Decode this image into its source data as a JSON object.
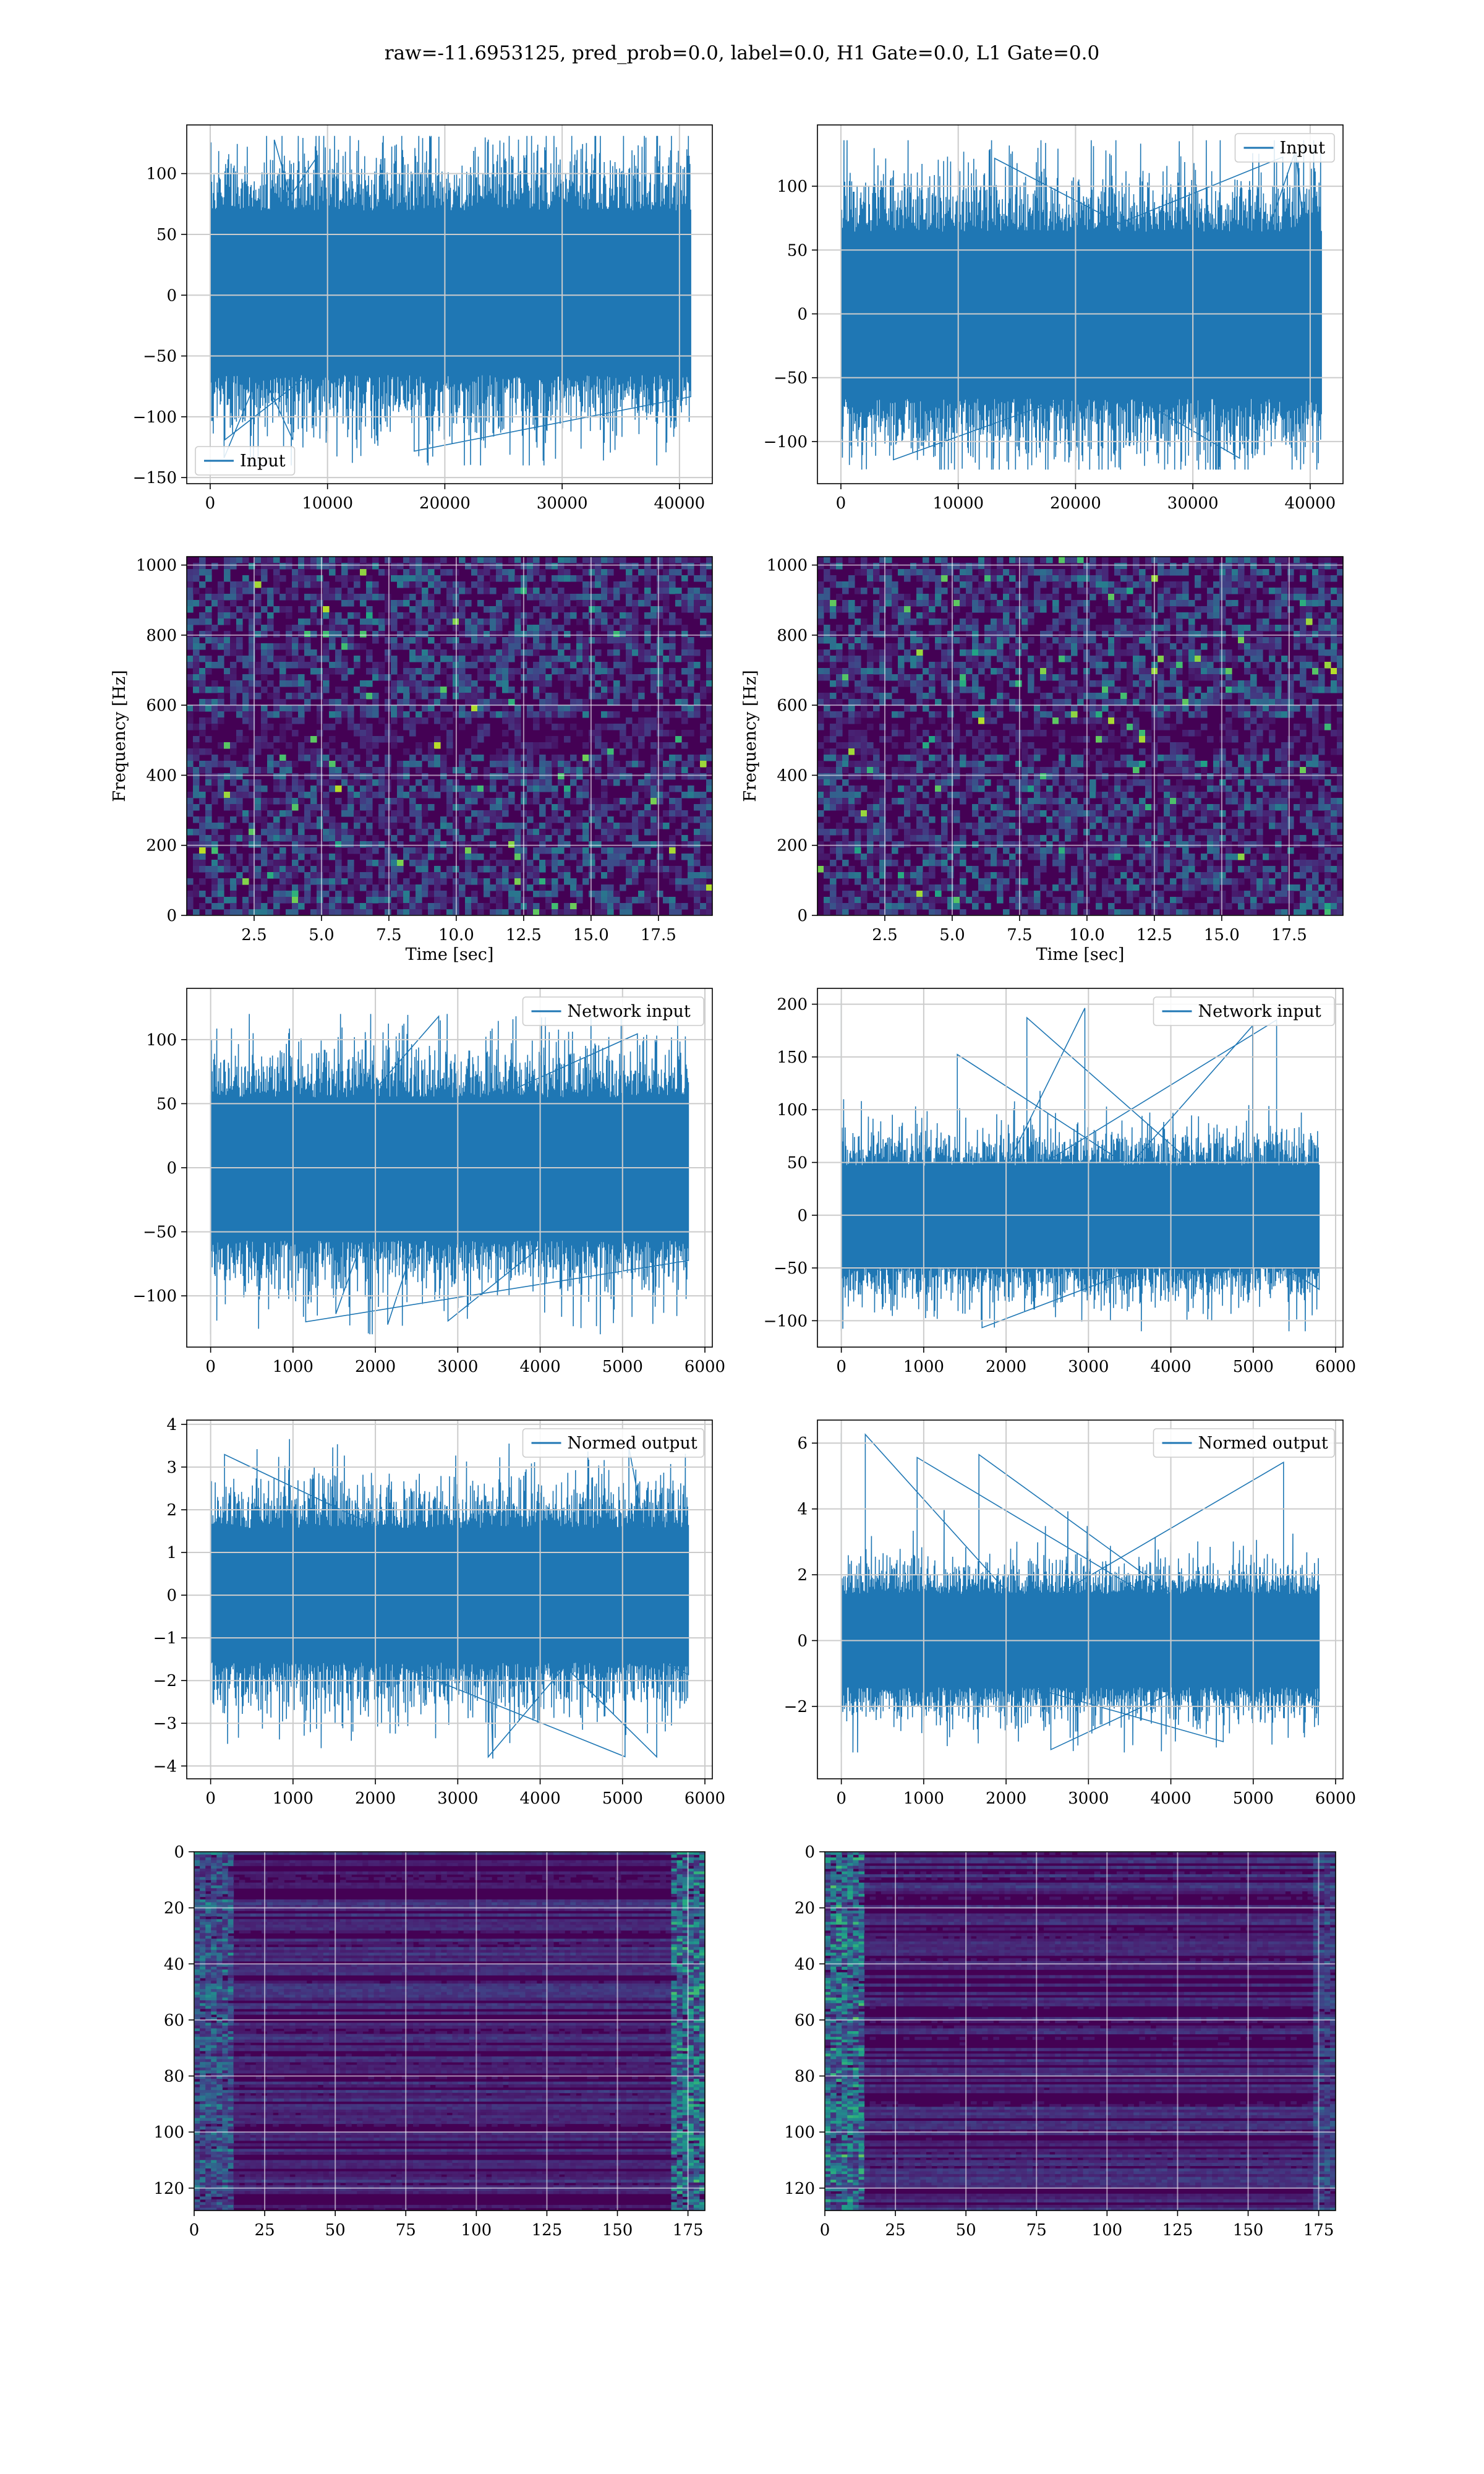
{
  "figure": {
    "title": "raw=-11.6953125, pred_prob=0.0, label=0.0, H1 Gate=0.0, L1 Gate=0.0"
  },
  "colors": {
    "series": "#1f77b4",
    "heatmap_low": "#440154",
    "heatmap_mid": "#21918c",
    "heatmap_high": "#fde725",
    "grid": "#cccccc"
  },
  "chart_data": [
    {
      "id": "h1-input",
      "type": "line",
      "legend": "Input",
      "legend_loc": "lower-left",
      "xlim": [
        -2000,
        42800
      ],
      "ylim": [
        -155,
        140
      ],
      "xticks": [
        0,
        10000,
        20000,
        30000,
        40000
      ],
      "yticks": [
        -150,
        -100,
        -50,
        0,
        50,
        100
      ],
      "grid": true,
      "envelope": {
        "n_samples": 40960,
        "upper_typical": 88,
        "lower_typical": -84,
        "upper_peak": 131,
        "lower_peak": -140
      }
    },
    {
      "id": "l1-input",
      "type": "line",
      "legend": "Input",
      "legend_loc": "upper-right",
      "xlim": [
        -2000,
        42800
      ],
      "ylim": [
        -133,
        148
      ],
      "xticks": [
        0,
        10000,
        20000,
        30000,
        40000
      ],
      "yticks": [
        -100,
        -50,
        0,
        50,
        100
      ],
      "grid": true,
      "envelope": {
        "n_samples": 40960,
        "upper_typical": 82,
        "lower_typical": -84,
        "upper_peak": 136,
        "lower_peak": -122
      }
    },
    {
      "id": "h1-spectrogram",
      "type": "heatmap",
      "xlabel": "Time [sec]",
      "ylabel": "Frequency [Hz]",
      "xlim": [
        0,
        19.5
      ],
      "ylim": [
        0,
        1024
      ],
      "xticks": [
        2.5,
        5.0,
        7.5,
        10.0,
        12.5,
        15.0,
        17.5
      ],
      "yticks": [
        0,
        200,
        400,
        600,
        800,
        1000
      ],
      "grid": true,
      "colormap": "viridis"
    },
    {
      "id": "l1-spectrogram",
      "type": "heatmap",
      "xlabel": "Time [sec]",
      "ylabel": "Frequency [Hz]",
      "xlim": [
        0,
        19.5
      ],
      "ylim": [
        0,
        1024
      ],
      "xticks": [
        2.5,
        5.0,
        7.5,
        10.0,
        12.5,
        15.0,
        17.5
      ],
      "yticks": [
        0,
        200,
        400,
        600,
        800,
        1000
      ],
      "grid": true,
      "colormap": "viridis"
    },
    {
      "id": "h1-network-input",
      "type": "line",
      "legend": "Network input",
      "legend_loc": "upper-right",
      "xlim": [
        -290,
        6090
      ],
      "ylim": [
        -140,
        140
      ],
      "xticks": [
        0,
        1000,
        2000,
        3000,
        4000,
        5000,
        6000
      ],
      "yticks": [
        -100,
        -50,
        0,
        50,
        100
      ],
      "grid": true,
      "envelope": {
        "n_samples": 5800,
        "upper_typical": 70,
        "lower_typical": -72,
        "upper_peak": 120,
        "lower_peak": -130
      }
    },
    {
      "id": "l1-network-input",
      "type": "line",
      "legend": "Network input",
      "legend_loc": "upper-right",
      "xlim": [
        -290,
        6090
      ],
      "ylim": [
        -125,
        215
      ],
      "xticks": [
        0,
        1000,
        2000,
        3000,
        4000,
        5000,
        6000
      ],
      "yticks": [
        -100,
        -50,
        0,
        50,
        100,
        150,
        200
      ],
      "grid": true,
      "envelope": {
        "n_samples": 5800,
        "upper_typical": 60,
        "lower_typical": -62,
        "upper_peak": 205,
        "lower_peak": -110
      }
    },
    {
      "id": "h1-normed-output",
      "type": "line",
      "legend": "Normed output",
      "legend_loc": "upper-right",
      "xlim": [
        -290,
        6090
      ],
      "ylim": [
        -4.3,
        4.1
      ],
      "xticks": [
        0,
        1000,
        2000,
        3000,
        4000,
        5000,
        6000
      ],
      "yticks": [
        -4,
        -3,
        -2,
        -1,
        0,
        1,
        2,
        3,
        4
      ],
      "grid": true,
      "envelope": {
        "n_samples": 5800,
        "upper_typical": 2.0,
        "lower_typical": -2.0,
        "upper_peak": 3.7,
        "lower_peak": -4.0
      }
    },
    {
      "id": "l1-normed-output",
      "type": "line",
      "legend": "Normed output",
      "legend_loc": "upper-right",
      "xlim": [
        -290,
        6090
      ],
      "ylim": [
        -4.2,
        6.7
      ],
      "xticks": [
        0,
        1000,
        2000,
        3000,
        4000,
        5000,
        6000
      ],
      "yticks": [
        -2,
        0,
        2,
        4,
        6
      ],
      "grid": true,
      "envelope": {
        "n_samples": 5800,
        "upper_typical": 1.8,
        "lower_typical": -1.8,
        "upper_peak": 6.3,
        "lower_peak": -3.4
      }
    },
    {
      "id": "h1-feature-map",
      "type": "heatmap",
      "xlim": [
        0,
        181
      ],
      "ylim": [
        128,
        0
      ],
      "xticks": [
        0,
        25,
        50,
        75,
        100,
        125,
        150,
        175
      ],
      "yticks": [
        0,
        20,
        40,
        60,
        80,
        100,
        120
      ],
      "grid": true,
      "colormap": "viridis"
    },
    {
      "id": "l1-feature-map",
      "type": "heatmap",
      "xlim": [
        0,
        181
      ],
      "ylim": [
        128,
        0
      ],
      "xticks": [
        0,
        25,
        50,
        75,
        100,
        125,
        150,
        175
      ],
      "yticks": [
        0,
        20,
        40,
        60,
        80,
        100,
        120
      ],
      "grid": true,
      "colormap": "viridis"
    }
  ]
}
